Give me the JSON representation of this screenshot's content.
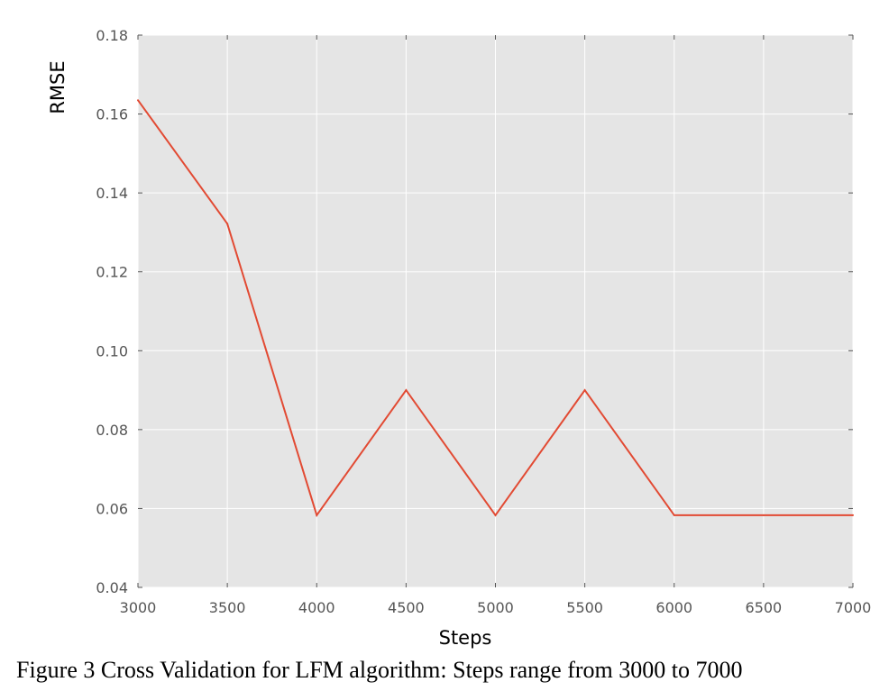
{
  "chart_data": {
    "type": "line",
    "title": "",
    "xlabel": "Steps",
    "ylabel": "RMSE",
    "xlim": [
      3000,
      7000
    ],
    "ylim": [
      0.04,
      0.18
    ],
    "xticks": [
      3000,
      3500,
      4000,
      4500,
      5000,
      5500,
      6000,
      6500,
      7000
    ],
    "xtick_labels": [
      "3000",
      "3500",
      "4000",
      "4500",
      "5000",
      "5500",
      "6000",
      "6500",
      "7000"
    ],
    "yticks": [
      0.04,
      0.06,
      0.08,
      0.1,
      0.12,
      0.14,
      0.16,
      0.18
    ],
    "ytick_labels": [
      "0.04",
      "0.06",
      "0.08",
      "0.10",
      "0.12",
      "0.14",
      "0.16",
      "0.18"
    ],
    "grid": true,
    "background_color": "#e5e5e5",
    "grid_color": "#ffffff",
    "line_color": "#e24a33",
    "series": [
      {
        "x": [
          3000,
          3500,
          4000,
          4500,
          5000,
          5500,
          6000,
          6500,
          7000
        ],
        "values": [
          0.1635,
          0.1322,
          0.0583,
          0.09,
          0.0583,
          0.09,
          0.0583,
          0.0583,
          0.0583
        ]
      }
    ]
  },
  "caption": "Figure 3 Cross Validation for LFM algorithm: Steps range from 3000 to 7000"
}
